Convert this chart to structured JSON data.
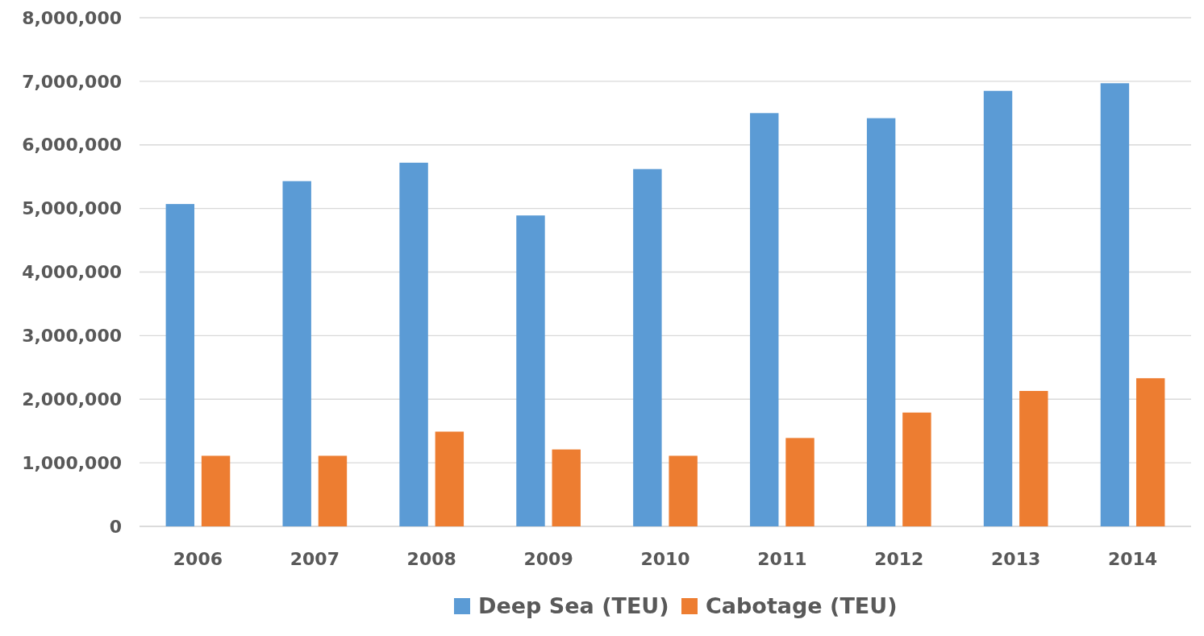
{
  "chart_data": {
    "type": "bar",
    "categories": [
      "2006",
      "2007",
      "2008",
      "2009",
      "2010",
      "2011",
      "2012",
      "2013",
      "2014"
    ],
    "series": [
      {
        "name": "Deep Sea (TEU)",
        "color": "#5b9bd5",
        "values": [
          5070000,
          5430000,
          5720000,
          4890000,
          5620000,
          6500000,
          6420000,
          6850000,
          6970000
        ]
      },
      {
        "name": "Cabotage (TEU)",
        "color": "#ed7d31",
        "values": [
          1110000,
          1110000,
          1490000,
          1210000,
          1110000,
          1390000,
          1790000,
          2130000,
          2330000
        ]
      }
    ],
    "ylim": [
      0,
      8000000
    ],
    "yticks": [
      {
        "value": 0,
        "label": "0"
      },
      {
        "value": 1000000,
        "label": "1,000,000"
      },
      {
        "value": 2000000,
        "label": "2,000,000"
      },
      {
        "value": 3000000,
        "label": "3,000,000"
      },
      {
        "value": 4000000,
        "label": "4,000,000"
      },
      {
        "value": 5000000,
        "label": "5,000,000"
      },
      {
        "value": 6000000,
        "label": "6,000,000"
      },
      {
        "value": 7000000,
        "label": "7,000,000"
      },
      {
        "value": 8000000,
        "label": "8,000,000"
      }
    ],
    "grid": "y",
    "legend": "bottom"
  }
}
